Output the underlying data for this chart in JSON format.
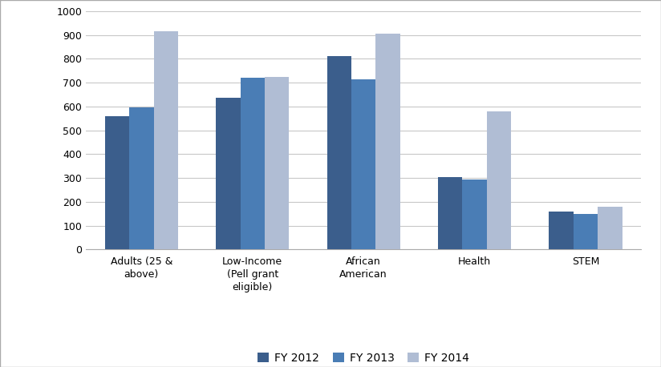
{
  "categories": [
    "Adults (25 &\nabove)",
    "Low-Income\n(Pell grant\neligible)",
    "African\nAmerican",
    "Health",
    "STEM"
  ],
  "series": {
    "FY 2012": [
      560,
      635,
      810,
      305,
      160
    ],
    "FY 2013": [
      595,
      720,
      715,
      293,
      150
    ],
    "FY 2014": [
      915,
      725,
      905,
      580,
      178
    ]
  },
  "bar_colors": {
    "FY 2012": "#3B5E8C",
    "FY 2013": "#4A7DB5",
    "FY 2014": "#B0BDD4"
  },
  "ylim": [
    0,
    1000
  ],
  "yticks": [
    0,
    100,
    200,
    300,
    400,
    500,
    600,
    700,
    800,
    900,
    1000
  ],
  "background_color": "#FFFFFF",
  "grid_color": "#C8C8C8",
  "legend_labels": [
    "FY 2012",
    "FY 2013",
    "FY 2014"
  ],
  "bar_width": 0.22,
  "figsize": [
    8.24,
    4.58
  ],
  "dpi": 100
}
